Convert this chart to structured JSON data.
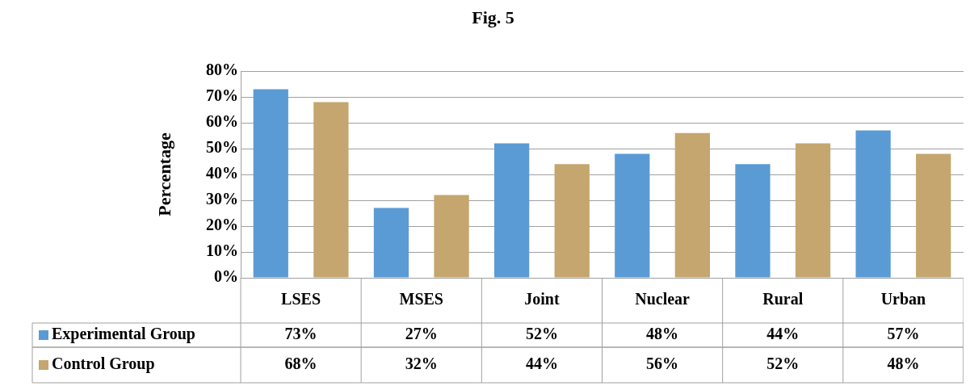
{
  "chart_data": {
    "type": "bar",
    "title": "Fig. 5",
    "ylabel": "Percentage",
    "categories": [
      "LSES",
      "MSES",
      "Joint",
      "Nuclear",
      "Rural",
      "Urban"
    ],
    "series": [
      {
        "name": "Experimental Group",
        "color": "#5b9bd5",
        "values": [
          73,
          27,
          52,
          48,
          44,
          57
        ],
        "value_labels": [
          "73%",
          "27%",
          "52%",
          "48%",
          "44%",
          "57%"
        ]
      },
      {
        "name": "Control Group",
        "color": "#c4a66e",
        "values": [
          68,
          32,
          44,
          56,
          52,
          48
        ],
        "value_labels": [
          "68%",
          "32%",
          "44%",
          "56%",
          "52%",
          "48%"
        ]
      }
    ],
    "ylim": [
      0,
      80
    ],
    "yticks": [
      {
        "value": 0,
        "label": "0%"
      },
      {
        "value": 10,
        "label": "10%"
      },
      {
        "value": 20,
        "label": "20%"
      },
      {
        "value": 30,
        "label": "30%"
      },
      {
        "value": 40,
        "label": "40%"
      },
      {
        "value": 50,
        "label": "50%"
      },
      {
        "value": 60,
        "label": "60%"
      },
      {
        "value": 70,
        "label": "70%"
      },
      {
        "value": 80,
        "label": "80%"
      }
    ],
    "grid": "y",
    "legend": "bottom"
  }
}
